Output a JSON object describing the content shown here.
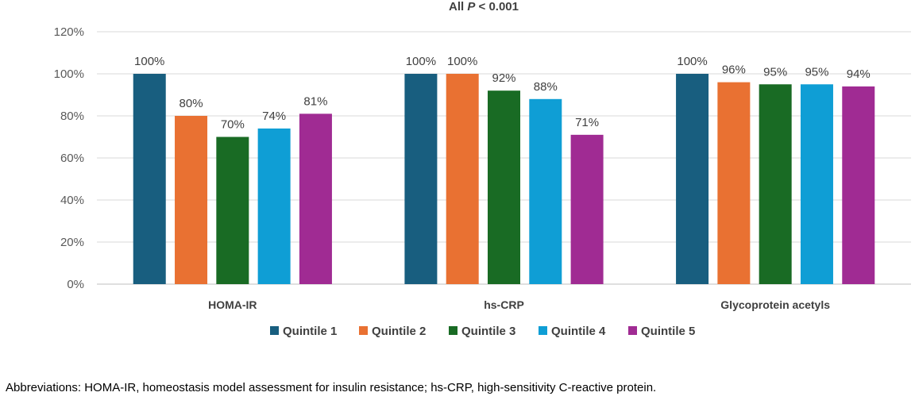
{
  "chart_data": {
    "type": "bar",
    "title_prefix": "All ",
    "title_italic": "P",
    "title_suffix": " < 0.001",
    "categories": [
      "HOMA-IR",
      "hs-CRP",
      "Glycoprotein acetyls"
    ],
    "series": [
      {
        "name": "Quintile 1",
        "color": "#185E7F",
        "values": [
          100,
          100,
          100
        ]
      },
      {
        "name": "Quintile 2",
        "color": "#E97132",
        "values": [
          80,
          100,
          96
        ]
      },
      {
        "name": "Quintile 3",
        "color": "#196B24",
        "values": [
          70,
          92,
          95
        ]
      },
      {
        "name": "Quintile 4",
        "color": "#0F9ED5",
        "values": [
          74,
          88,
          95
        ]
      },
      {
        "name": "Quintile 5",
        "color": "#A02B93",
        "values": [
          81,
          71,
          94
        ]
      }
    ],
    "data_labels": [
      [
        "100%",
        "100%",
        "100%"
      ],
      [
        "80%",
        "100%",
        "96%"
      ],
      [
        "70%",
        "92%",
        "95%"
      ],
      [
        "74%",
        "88%",
        "95%"
      ],
      [
        "81%",
        "71%",
        "94%"
      ]
    ],
    "ylim": [
      0,
      120
    ],
    "yticks": [
      0,
      20,
      40,
      60,
      80,
      100,
      120
    ],
    "ytick_labels": [
      "0%",
      "20%",
      "40%",
      "60%",
      "80%",
      "100%",
      "120%"
    ],
    "grid": true,
    "legend_position": "bottom"
  },
  "footnote": "Abbreviations: HOMA-IR, homeostasis model assessment for insulin resistance; hs-CRP, high-sensitivity C-reactive protein."
}
